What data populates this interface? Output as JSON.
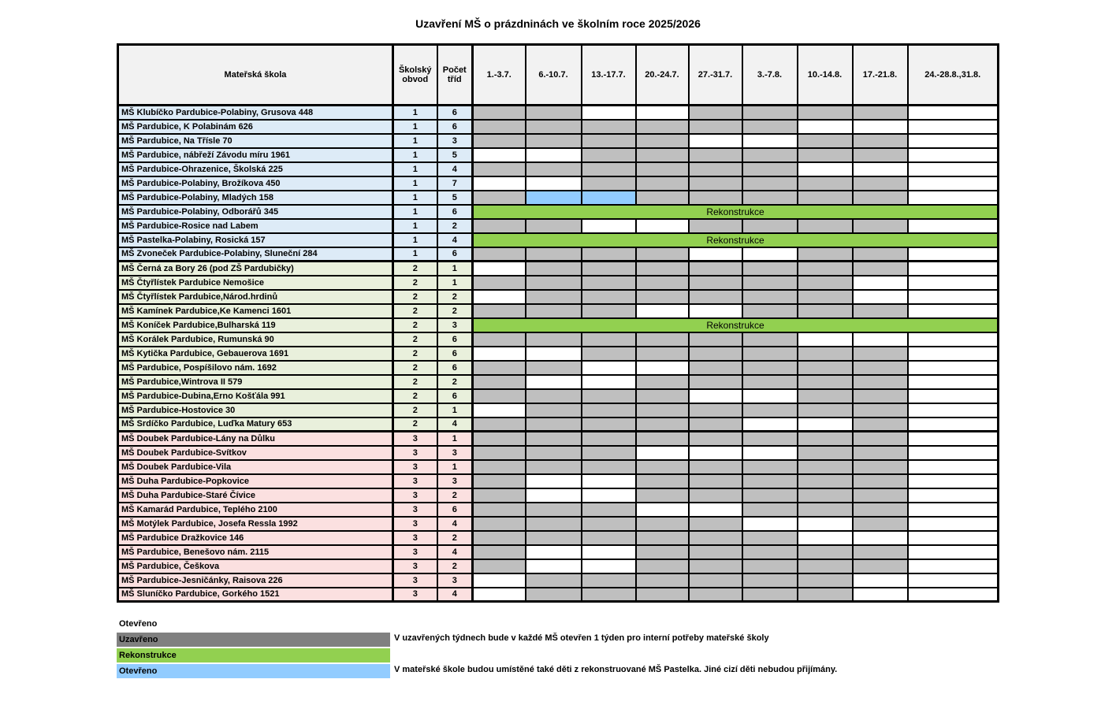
{
  "title": "Uzavření MŠ o prázdninách ve školním roce 2025/2026",
  "table": {
    "headers": {
      "school": "Mateřská škola",
      "district": "Školský obvod",
      "classes": "Počet tříd",
      "weeks": [
        "1.-3.7.",
        "6.-10.7.",
        "13.-17.7.",
        "20.-24.7.",
        "27.-31.7.",
        "3.-7.8.",
        "10.-14.8.",
        "17.-21.8.",
        "24.-28.8.,31.8."
      ]
    },
    "reconstruction_label": "Rekonstrukce",
    "cell_states": {
      "C": "Uzavřeno",
      "O": "Otevřeno",
      "B": "Otevřeno",
      "R": "Rekonstrukce"
    },
    "rows": [
      {
        "name": "MŠ Klubíčko Pardubice-Polabiny, Grusova 448",
        "district": 1,
        "classes": 6,
        "cells": [
          "C",
          "C",
          "O",
          "O",
          "C",
          "C",
          "C",
          "C",
          "O"
        ]
      },
      {
        "name": "MŠ Pardubice, K Polabinám 626",
        "district": 1,
        "classes": 6,
        "cells": [
          "C",
          "C",
          "C",
          "C",
          "C",
          "C",
          "O",
          "O",
          "O"
        ]
      },
      {
        "name": "MŠ Pardubice, Na Třísle 70",
        "district": 1,
        "classes": 3,
        "cells": [
          "C",
          "C",
          "C",
          "C",
          "O",
          "O",
          "C",
          "C",
          "O"
        ]
      },
      {
        "name": "MŠ Pardubice, nábřeží Závodu míru 1961",
        "district": 1,
        "classes": 5,
        "cells": [
          "O",
          "O",
          "C",
          "C",
          "C",
          "C",
          "C",
          "C",
          "O"
        ]
      },
      {
        "name": "MŠ Pardubice-Ohrazenice, Školská 225",
        "district": 1,
        "classes": 4,
        "cells": [
          "C",
          "C",
          "C",
          "C",
          "C",
          "C",
          "O",
          "O",
          "O"
        ]
      },
      {
        "name": "MŠ Pardubice-Polabiny, Brožíkova 450",
        "district": 1,
        "classes": 7,
        "cells": [
          "O",
          "O",
          "C",
          "C",
          "C",
          "C",
          "C",
          "C",
          "O"
        ]
      },
      {
        "name": "MŠ Pardubice-Polabiny, Mladých 158",
        "district": 1,
        "classes": 5,
        "cells": [
          "C",
          "B",
          "B",
          "C",
          "C",
          "C",
          "C",
          "C",
          "O"
        ]
      },
      {
        "name": "MŠ Pardubice-Polabiny, Odborářů 345",
        "district": 1,
        "classes": 6,
        "cells": [
          "R"
        ]
      },
      {
        "name": "MŠ Pardubice-Rosice nad Labem",
        "district": 1,
        "classes": 2,
        "cells": [
          "C",
          "C",
          "O",
          "O",
          "C",
          "C",
          "C",
          "C",
          "O"
        ]
      },
      {
        "name": "MŠ Pastelka-Polabiny, Rosická 157",
        "district": 1,
        "classes": 4,
        "cells": [
          "R"
        ]
      },
      {
        "name": "MŠ Zvoneček Pardubice-Polabiny, Sluneční 284",
        "district": 1,
        "classes": 6,
        "cells": [
          "C",
          "C",
          "C",
          "C",
          "O",
          "O",
          "C",
          "C",
          "O"
        ]
      },
      {
        "name": "MŠ Černá za Bory 26 (pod ZŠ Pardubičky)",
        "district": 2,
        "classes": 1,
        "cells": [
          "O",
          "C",
          "C",
          "C",
          "C",
          "C",
          "C",
          "C",
          "O"
        ]
      },
      {
        "name": "MŠ Čtyřlístek Pardubice Nemošice",
        "district": 2,
        "classes": 1,
        "cells": [
          "C",
          "C",
          "C",
          "C",
          "C",
          "C",
          "C",
          "O",
          "O"
        ]
      },
      {
        "name": "MŠ Čtyřlístek Pardubice,Národ.hrdinů",
        "district": 2,
        "classes": 2,
        "cells": [
          "O",
          "C",
          "C",
          "C",
          "C",
          "C",
          "C",
          "O",
          "O"
        ]
      },
      {
        "name": "MŠ Kamínek Pardubice,Ke Kamenci 1601",
        "district": 2,
        "classes": 2,
        "cells": [
          "C",
          "C",
          "C",
          "O",
          "O",
          "C",
          "C",
          "C",
          "O"
        ]
      },
      {
        "name": "MŠ Koníček Pardubice,Bulharská 119",
        "district": 2,
        "classes": 3,
        "cells": [
          "R"
        ]
      },
      {
        "name": "MŠ Korálek Pardubice, Rumunská 90",
        "district": 2,
        "classes": 6,
        "cells": [
          "C",
          "C",
          "C",
          "C",
          "C",
          "C",
          "O",
          "O",
          "O"
        ]
      },
      {
        "name": "MŠ Kytička Pardubice, Gebauerova 1691",
        "district": 2,
        "classes": 6,
        "cells": [
          "O",
          "O",
          "C",
          "C",
          "C",
          "C",
          "C",
          "C",
          "O"
        ]
      },
      {
        "name": "MŠ Pardubice, Pospíšilovo nám. 1692",
        "district": 2,
        "classes": 6,
        "cells": [
          "C",
          "C",
          "O",
          "O",
          "C",
          "C",
          "C",
          "C",
          "O"
        ]
      },
      {
        "name": "MŠ Pardubice,Wintrova II 579",
        "district": 2,
        "classes": 2,
        "cells": [
          "C",
          "O",
          "O",
          "C",
          "C",
          "C",
          "C",
          "C",
          "O"
        ]
      },
      {
        "name": "MŠ Pardubice-Dubina,Erno Košťála 991",
        "district": 2,
        "classes": 6,
        "cells": [
          "C",
          "C",
          "C",
          "C",
          "O",
          "O",
          "C",
          "C",
          "O"
        ]
      },
      {
        "name": "MŠ Pardubice-Hostovice 30",
        "district": 2,
        "classes": 1,
        "cells": [
          "O",
          "C",
          "C",
          "C",
          "C",
          "C",
          "C",
          "C",
          "O"
        ]
      },
      {
        "name": "MŠ Srdíčko Pardubice, Luďka Matury 653",
        "district": 2,
        "classes": 4,
        "cells": [
          "C",
          "C",
          "C",
          "C",
          "C",
          "O",
          "O",
          "C",
          "O"
        ]
      },
      {
        "name": "MŠ Doubek Pardubice-Lány na Důlku",
        "district": 3,
        "classes": 1,
        "cells": [
          "C",
          "C",
          "C",
          "C",
          "C",
          "C",
          "C",
          "C",
          "O"
        ]
      },
      {
        "name": "MŠ Doubek Pardubice-Svítkov",
        "district": 3,
        "classes": 3,
        "cells": [
          "C",
          "C",
          "C",
          "O",
          "O",
          "O",
          "C",
          "C",
          "O"
        ]
      },
      {
        "name": "MŠ Doubek Pardubice-Vila",
        "district": 3,
        "classes": 1,
        "cells": [
          "C",
          "C",
          "C",
          "C",
          "C",
          "C",
          "C",
          "C",
          "O"
        ]
      },
      {
        "name": "MŠ Duha Pardubice-Popkovice",
        "district": 3,
        "classes": 3,
        "cells": [
          "C",
          "O",
          "O",
          "C",
          "C",
          "C",
          "C",
          "C",
          "O"
        ]
      },
      {
        "name": "MŠ Duha Pardubice-Staré Čívice",
        "district": 3,
        "classes": 2,
        "cells": [
          "C",
          "O",
          "O",
          "C",
          "C",
          "C",
          "C",
          "C",
          "O"
        ]
      },
      {
        "name": "MŠ Kamarád Pardubice, Teplého 2100",
        "district": 3,
        "classes": 6,
        "cells": [
          "C",
          "C",
          "C",
          "O",
          "O",
          "C",
          "C",
          "C",
          "O"
        ]
      },
      {
        "name": "MŠ Motýlek Pardubice, Josefa Ressla 1992",
        "district": 3,
        "classes": 4,
        "cells": [
          "C",
          "C",
          "C",
          "C",
          "C",
          "O",
          "O",
          "C",
          "O"
        ]
      },
      {
        "name": "MŠ Pardubice Dražkovice 146",
        "district": 3,
        "classes": 2,
        "cells": [
          "C",
          "C",
          "C",
          "C",
          "C",
          "C",
          "O",
          "O",
          "O"
        ]
      },
      {
        "name": "MŠ Pardubice, Benešovo nám. 2115",
        "district": 3,
        "classes": 4,
        "cells": [
          "C",
          "O",
          "O",
          "C",
          "C",
          "C",
          "C",
          "C",
          "O"
        ]
      },
      {
        "name": "MŠ Pardubice, Češkova",
        "district": 3,
        "classes": 2,
        "cells": [
          "C",
          "O",
          "O",
          "C",
          "C",
          "C",
          "C",
          "C",
          "O"
        ]
      },
      {
        "name": "MŠ Pardubice-Jesničánky, Raisova 226",
        "district": 3,
        "classes": 3,
        "cells": [
          "O",
          "C",
          "C",
          "C",
          "C",
          "C",
          "C",
          "O",
          "O"
        ]
      },
      {
        "name": "MŠ Sluníčko Pardubice, Gorkého 1521",
        "district": 3,
        "classes": 4,
        "cells": [
          "O",
          "C",
          "C",
          "C",
          "C",
          "C",
          "C",
          "O",
          "O"
        ]
      }
    ]
  },
  "legend": {
    "items": [
      {
        "label": "Otevřeno",
        "color": "none"
      },
      {
        "label": "Uzavřeno",
        "color": "#808080"
      },
      {
        "label": "Rekonstrukce",
        "color": "#92D050"
      },
      {
        "label": "Otevřeno",
        "color": "#92CCFF"
      }
    ]
  },
  "notes": [
    "V uzavřených týdnech bude v každé MŠ otevřen 1 týden pro interní potřeby mateřské školy",
    "V mateřské škole budou umístěné také děti z rekonstruované MŠ Pastelka. Jiné cizí děti nebudou přijímány."
  ],
  "colors": {
    "closed": "#BFBFBF",
    "open": "#FFFFFF",
    "special_open": "#92CCFF",
    "reconstruction": "#92D050",
    "legend_closed": "#808080",
    "district1_bg": "#DDEBF7",
    "district2_bg": "#E9F0DC",
    "district3_bg": "#FBE0E0",
    "header_bg": "#F2F2F2"
  }
}
